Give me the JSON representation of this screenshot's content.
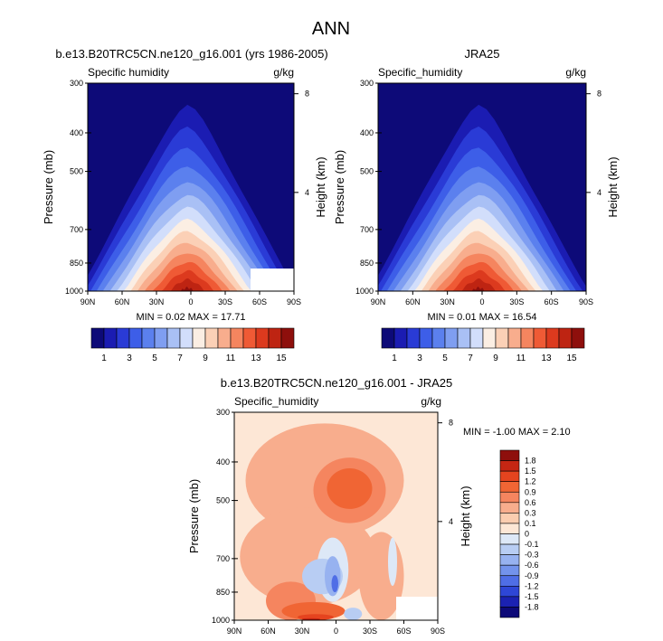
{
  "figure": {
    "title": "ANN"
  },
  "panels": [
    {
      "title": "b.e13.B20TRC5CN.ne120_g16.001 (yrs 1986-2005)",
      "left_label": "Specific humidity",
      "unit": "g/kg",
      "ylabel": "Pressure (mb)",
      "right_label": "Height (km)",
      "stats": "MIN =  0.02  MAX = 17.71"
    },
    {
      "title": "JRA25",
      "left_label": "Specific_humidity",
      "unit": "g/kg",
      "ylabel": "Pressure (mb)",
      "right_label": "Height (km)",
      "stats": "MIN =  0.01  MAX = 16.54"
    },
    {
      "title": "b.e13.B20TRC5CN.ne120_g16.001 - JRA25",
      "left_label": "Specific_humidity",
      "unit": "g/kg",
      "ylabel": "Pressure (mb)",
      "right_label": "Height (km)",
      "stats": "MIN = -1.00  MAX =  2.10"
    }
  ],
  "chart_data": [
    {
      "type": "heatmap",
      "title": "b.e13.B20TRC5CN.ne120_g16.001 (yrs 1986-2005)",
      "x_ticks": [
        "90N",
        "60N",
        "30N",
        "0",
        "30S",
        "60S",
        "90S"
      ],
      "y_ticks": [
        300,
        400,
        500,
        700,
        850,
        1000
      ],
      "height_ticks": [
        8,
        4
      ],
      "ylim": [
        1000,
        300
      ],
      "min": 0.02,
      "max": 17.71,
      "peak": {
        "lat": 5,
        "pressure": 1000
      },
      "missing_region": {
        "lat_from": -45,
        "lat_to": -90,
        "pressure_from": 880
      }
    },
    {
      "type": "heatmap",
      "title": "JRA25",
      "x_ticks": [
        "90N",
        "60N",
        "30N",
        "0",
        "30S",
        "60S",
        "90S"
      ],
      "y_ticks": [
        300,
        400,
        500,
        700,
        850,
        1000
      ],
      "height_ticks": [
        8,
        4
      ],
      "ylim": [
        1000,
        300
      ],
      "min": 0.01,
      "max": 16.54,
      "peak": {
        "lat": 5,
        "pressure": 1000
      }
    },
    {
      "type": "heatmap",
      "title": "b.e13.B20TRC5CN.ne120_g16.001 - JRA25",
      "x_ticks": [
        "90N",
        "60N",
        "30N",
        "0",
        "30S",
        "60S",
        "90S"
      ],
      "y_ticks": [
        300,
        400,
        500,
        700,
        850,
        1000
      ],
      "height_ticks": [
        8,
        4
      ],
      "ylim": [
        1000,
        300
      ],
      "min": -1.0,
      "max": 2.1
    }
  ],
  "colorbar_main": {
    "labels": [
      "1",
      "3",
      "5",
      "7",
      "9",
      "11",
      "13",
      "15"
    ],
    "colors": [
      "#0d0a78",
      "#1b1cb2",
      "#2a3bd6",
      "#3d5ee8",
      "#5b80ee",
      "#7f9ef1",
      "#a9c0f5",
      "#d2defb",
      "#fbeee3",
      "#fbd0b6",
      "#f8ad8d",
      "#f5855f",
      "#ef5a35",
      "#dc3a1e",
      "#be2412",
      "#8e0f0c"
    ]
  },
  "colorbar_diff": {
    "labels": [
      "1.8",
      "1.5",
      "1.2",
      "0.9",
      "0.6",
      "0.3",
      "0.1",
      "0",
      "-0.1",
      "-0.3",
      "-0.6",
      "-0.9",
      "-1.2",
      "-1.5",
      "-1.8"
    ],
    "colors": [
      "#8e0f0c",
      "#c52613",
      "#e5441f",
      "#f06534",
      "#f5855f",
      "#f8ad8d",
      "#fbcdb0",
      "#fde7d6",
      "#dde8f7",
      "#b8cdf3",
      "#97b2f0",
      "#7393ec",
      "#4f6ee6",
      "#2e46d6",
      "#1b22b2",
      "#0d0a78"
    ]
  }
}
